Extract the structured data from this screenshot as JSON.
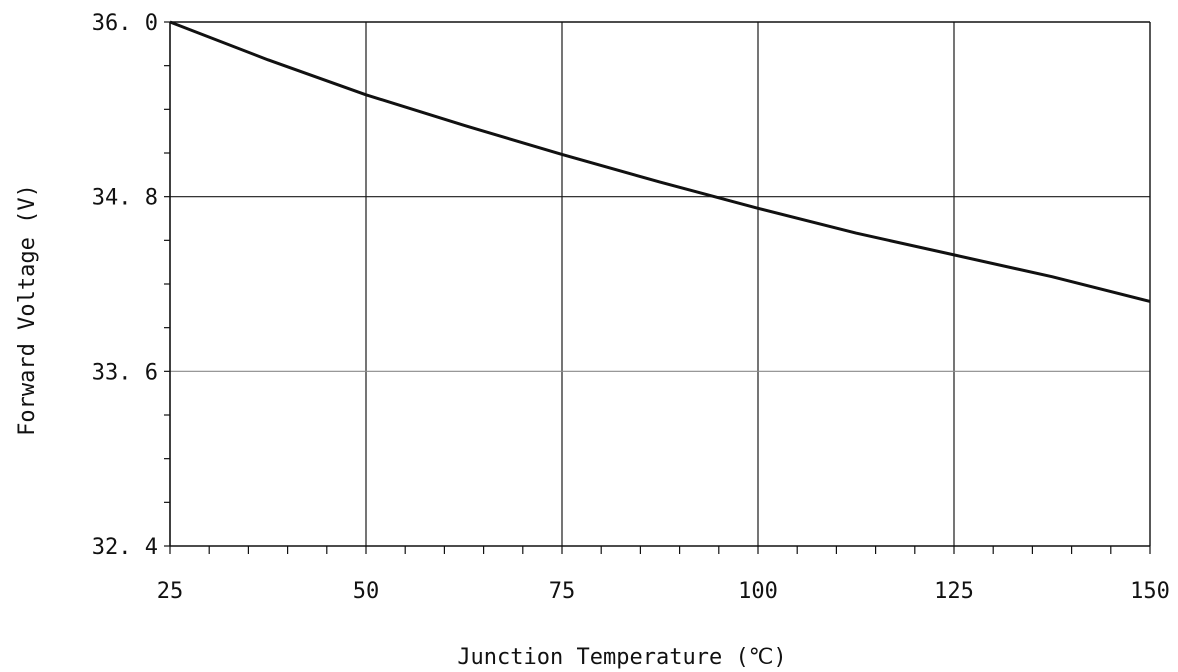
{
  "chart_data": {
    "type": "line",
    "title": "",
    "xlabel": "Junction Temperature (℃)",
    "ylabel": "Forward Voltage  (V)",
    "xlim": [
      25,
      150
    ],
    "ylim": [
      32.4,
      36.0
    ],
    "x_ticks": [
      25,
      50,
      75,
      100,
      125,
      150
    ],
    "x_tick_labels": [
      "25",
      "50",
      "75",
      "100",
      "125",
      "150"
    ],
    "y_ticks": [
      32.4,
      33.6,
      34.8,
      36.0
    ],
    "y_tick_labels": [
      "32. 4",
      "33. 6",
      "34. 8",
      "36. 0"
    ],
    "grid": true,
    "legend": "none",
    "series": [
      {
        "color": "#111111",
        "x": [
          25,
          37.5,
          50,
          62.5,
          75,
          87.5,
          100,
          112.5,
          125,
          137.5,
          150
        ],
        "y": [
          36.0,
          35.74,
          35.5,
          35.29,
          35.09,
          34.9,
          34.72,
          34.55,
          34.4,
          34.25,
          34.08
        ]
      }
    ]
  }
}
